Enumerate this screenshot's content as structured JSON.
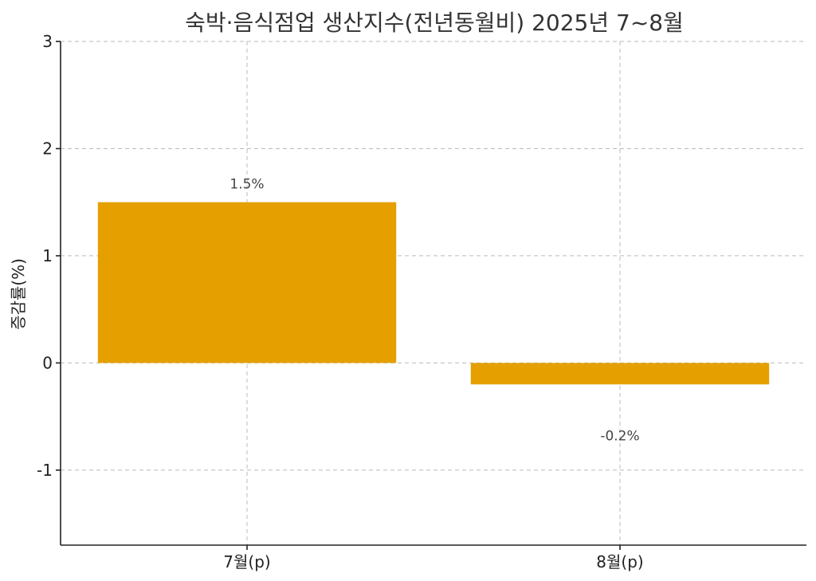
{
  "chart_data": {
    "type": "bar",
    "title": "숙박·음식점업 생산지수(전년동월비) 2025년 7~8월",
    "xlabel": "",
    "ylabel": "증감률(%)",
    "categories": [
      "7월(p)",
      "8월(p)"
    ],
    "values": [
      1.5,
      -0.2
    ],
    "data_labels": [
      "1.5%",
      "-0.2%"
    ],
    "ylim": [
      -1.7,
      3
    ],
    "yticks": [
      -1,
      0,
      1,
      2,
      3
    ],
    "grid": true,
    "bar_color": "#E5A000"
  }
}
